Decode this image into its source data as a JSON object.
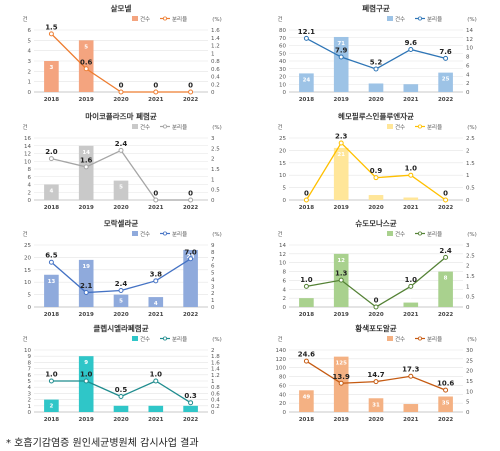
{
  "chart_data": [
    {
      "type": "bar",
      "title": "살모넬",
      "color": "#f4a47f",
      "line_color": "#ed7d31",
      "categories": [
        "2018",
        "2019",
        "2020",
        "2021",
        "2022"
      ],
      "series": [
        {
          "name": "건수",
          "type": "bar",
          "values": [
            3,
            5,
            0,
            0,
            0
          ],
          "labels": [
            "3",
            "5",
            "0",
            "0",
            "0"
          ]
        },
        {
          "name": "분리율",
          "type": "line",
          "values": [
            1.5,
            0.6,
            0,
            0,
            0
          ],
          "labels": [
            "1.5",
            "0.6",
            "0",
            "0",
            "0"
          ]
        }
      ],
      "left_unit": "건",
      "right_unit": "(%)",
      "left_ticks": [
        "0",
        "1",
        "2",
        "3",
        "4",
        "5",
        "6"
      ],
      "right_ticks": [
        "0",
        "0.2",
        "0.4",
        "0.6",
        "0.8",
        "1",
        "1.2",
        "1.4",
        "1.6"
      ],
      "ylim_left": [
        0,
        6
      ],
      "ylim_right": [
        0,
        1.6
      ],
      "legend": "top-right"
    },
    {
      "type": "bar",
      "title": "폐렴구균",
      "color": "#9dc3e6",
      "line_color": "#2e75b6",
      "categories": [
        "2018",
        "2019",
        "2020",
        "2021",
        "2022"
      ],
      "series": [
        {
          "name": "건수",
          "type": "bar",
          "values": [
            24,
            71,
            11,
            10,
            25
          ],
          "labels": [
            "24",
            "71",
            "11",
            "10",
            "25"
          ]
        },
        {
          "name": "분리율",
          "type": "line",
          "values": [
            12.1,
            7.9,
            5.2,
            9.6,
            7.6
          ],
          "labels": [
            "12.1",
            "7.9",
            "5.2",
            "9.6",
            "7.6"
          ]
        }
      ],
      "left_unit": "건",
      "right_unit": "(%)",
      "left_ticks": [
        "0",
        "10",
        "20",
        "30",
        "40",
        "50",
        "60",
        "70",
        "80"
      ],
      "right_ticks": [
        "0",
        "2",
        "4",
        "6",
        "8",
        "10",
        "12",
        "14"
      ],
      "ylim_left": [
        0,
        80
      ],
      "ylim_right": [
        0,
        14
      ],
      "legend": "top-right"
    },
    {
      "type": "bar",
      "title": "마이코플라즈마 폐렴균",
      "color": "#c9c9c9",
      "line_color": "#a5a5a5",
      "categories": [
        "2018",
        "2019",
        "2020",
        "2021",
        "2022"
      ],
      "series": [
        {
          "name": "건수",
          "type": "bar",
          "values": [
            4,
            14,
            5,
            0,
            0
          ],
          "labels": [
            "4",
            "14",
            "5",
            "0",
            "0"
          ]
        },
        {
          "name": "분리율",
          "type": "line",
          "values": [
            2.0,
            1.6,
            2.4,
            0,
            0
          ],
          "labels": [
            "2.0",
            "1.6",
            "2.4",
            "0",
            "0"
          ]
        }
      ],
      "left_unit": "건",
      "right_unit": "(%)",
      "left_ticks": [
        "0",
        "2",
        "4",
        "6",
        "8",
        "10",
        "12",
        "14",
        "16"
      ],
      "right_ticks": [
        "0",
        "0.5",
        "1",
        "1.5",
        "2",
        "2.5",
        "3"
      ],
      "ylim_left": [
        0,
        16
      ],
      "ylim_right": [
        0,
        3
      ],
      "legend": "top-right"
    },
    {
      "type": "bar",
      "title": "헤모필루스인플루엔자균",
      "color": "#ffe699",
      "line_color": "#ffc000",
      "categories": [
        "2018",
        "2019",
        "2020",
        "2021",
        "2022"
      ],
      "series": [
        {
          "name": "건수",
          "type": "bar",
          "values": [
            0,
            21,
            2,
            1,
            0
          ],
          "labels": [
            "0",
            "21",
            "2",
            "1",
            "0"
          ]
        },
        {
          "name": "분리율",
          "type": "line",
          "values": [
            0,
            2.3,
            0.9,
            1.0,
            0
          ],
          "labels": [
            "0",
            "2.3",
            "0.9",
            "1.0",
            "0"
          ]
        }
      ],
      "left_unit": "건",
      "right_unit": "(%)",
      "left_ticks": [
        "0",
        "5",
        "10",
        "15",
        "20",
        "25"
      ],
      "right_ticks": [
        "0",
        "0.5",
        "1",
        "1.5",
        "2",
        "2.5"
      ],
      "ylim_left": [
        0,
        25
      ],
      "ylim_right": [
        0,
        2.5
      ],
      "legend": "top-right"
    },
    {
      "type": "bar",
      "title": "모락셀라균",
      "color": "#8faadc",
      "line_color": "#4472c4",
      "categories": [
        "2018",
        "2019",
        "2020",
        "2021",
        "2022"
      ],
      "series": [
        {
          "name": "건수",
          "type": "bar",
          "values": [
            13,
            19,
            5,
            4,
            23
          ],
          "labels": [
            "13",
            "19",
            "5",
            "4",
            "23"
          ]
        },
        {
          "name": "분리율",
          "type": "line",
          "values": [
            6.5,
            2.1,
            2.4,
            3.8,
            7.0
          ],
          "labels": [
            "6.5",
            "2.1",
            "2.4",
            "3.8",
            "7.0"
          ]
        }
      ],
      "left_unit": "건",
      "right_unit": "(%)",
      "left_ticks": [
        "0",
        "5",
        "10",
        "15",
        "20",
        "25"
      ],
      "right_ticks": [
        "0",
        "1",
        "2",
        "3",
        "4",
        "5",
        "6",
        "7",
        "8",
        "9"
      ],
      "ylim_left": [
        0,
        25
      ],
      "ylim_right": [
        0,
        9
      ],
      "legend": "top-right"
    },
    {
      "type": "bar",
      "title": "슈도모나스균",
      "color": "#a9d18e",
      "line_color": "#548235",
      "categories": [
        "2018",
        "2019",
        "2020",
        "2021",
        "2022"
      ],
      "series": [
        {
          "name": "건수",
          "type": "bar",
          "values": [
            2,
            12,
            0,
            1,
            8
          ],
          "labels": [
            "2",
            "12",
            "0",
            "1",
            "8"
          ]
        },
        {
          "name": "분리율",
          "type": "line",
          "values": [
            1.0,
            1.3,
            0,
            1.0,
            2.4
          ],
          "labels": [
            "1.0",
            "1.3",
            "0",
            "1.0",
            "2.4"
          ]
        }
      ],
      "left_unit": "건",
      "right_unit": "(%)",
      "left_ticks": [
        "0",
        "2",
        "4",
        "6",
        "8",
        "10",
        "12",
        "14"
      ],
      "right_ticks": [
        "0",
        "0.5",
        "1",
        "1.5",
        "2",
        "2.5",
        "3"
      ],
      "ylim_left": [
        0,
        14
      ],
      "ylim_right": [
        0,
        3
      ],
      "legend": "top-right"
    },
    {
      "type": "bar",
      "title": "클렙시엘라폐렴균",
      "color": "#2fc6c8",
      "line_color": "#1f8c8e",
      "categories": [
        "2018",
        "2019",
        "2020",
        "2021",
        "2022"
      ],
      "series": [
        {
          "name": "건수",
          "type": "bar",
          "values": [
            2,
            9,
            1,
            1,
            1
          ],
          "labels": [
            "2",
            "9",
            "1",
            "1",
            "1"
          ]
        },
        {
          "name": "분리율",
          "type": "line",
          "values": [
            1.0,
            1.0,
            0.5,
            1.0,
            0.3
          ],
          "labels": [
            "1.0",
            "1.0",
            "0.5",
            "1.0",
            "0.3"
          ]
        }
      ],
      "left_unit": "건",
      "right_unit": "(%)",
      "left_ticks": [
        "0",
        "1",
        "2",
        "3",
        "4",
        "5",
        "6",
        "7",
        "8",
        "9",
        "10"
      ],
      "right_ticks": [
        "0",
        "0.2",
        "0.4",
        "0.6",
        "0.8",
        "1",
        "1.2",
        "1.4",
        "1.6",
        "1.8",
        "2"
      ],
      "ylim_left": [
        0,
        10
      ],
      "ylim_right": [
        0,
        2
      ],
      "legend": "top-right"
    },
    {
      "type": "bar",
      "title": "황색포도알균",
      "color": "#f4b183",
      "line_color": "#c55a11",
      "categories": [
        "2018",
        "2019",
        "2020",
        "2021",
        "2022"
      ],
      "series": [
        {
          "name": "건수",
          "type": "bar",
          "values": [
            49,
            125,
            31,
            18,
            35
          ],
          "labels": [
            "49",
            "125",
            "31",
            "18",
            "35"
          ]
        },
        {
          "name": "분리율",
          "type": "line",
          "values": [
            24.6,
            13.9,
            14.7,
            17.3,
            10.6
          ],
          "labels": [
            "24.6",
            "13.9",
            "14.7",
            "17.3",
            "10.6"
          ]
        }
      ],
      "left_unit": "건",
      "right_unit": "(%)",
      "left_ticks": [
        "0",
        "20",
        "40",
        "60",
        "80",
        "100",
        "120",
        "140"
      ],
      "right_ticks": [
        "0",
        "5",
        "10",
        "15",
        "20",
        "25",
        "30"
      ],
      "ylim_left": [
        0,
        140
      ],
      "ylim_right": [
        0,
        30
      ],
      "legend": "top-right"
    }
  ],
  "footnote": "* 호흡기감염증 원인세균병원체 감시사업 결과"
}
